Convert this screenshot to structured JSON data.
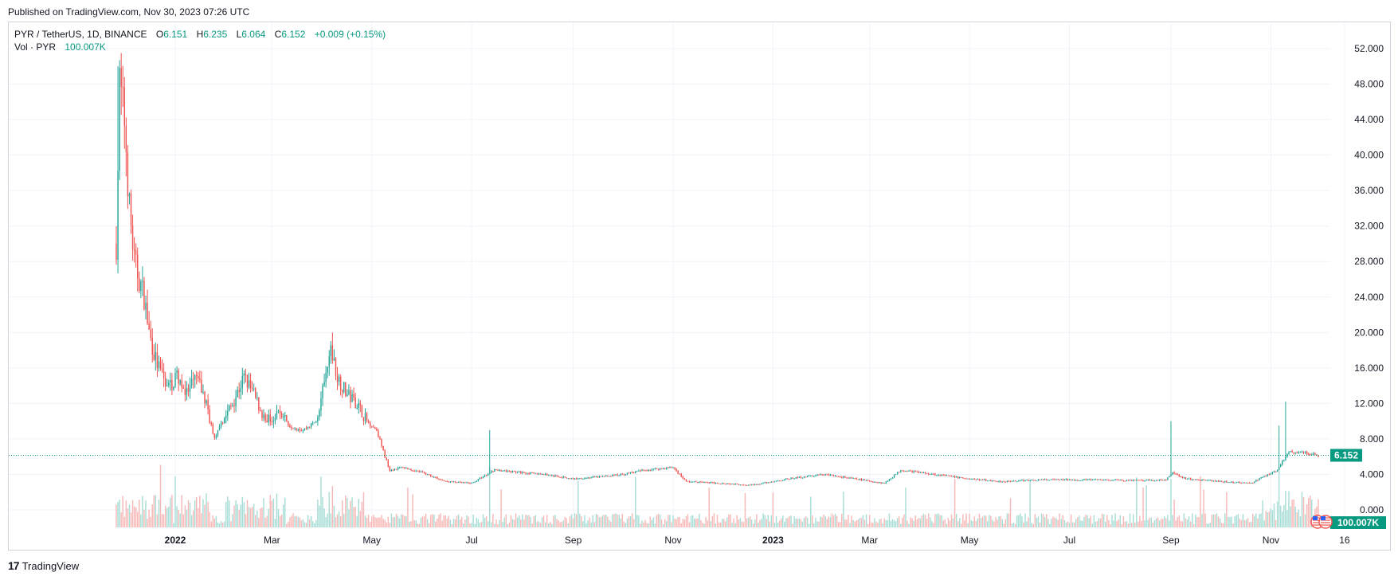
{
  "header": {
    "published": "Published on TradingView.com, Nov 30, 2023 07:26 UTC"
  },
  "legend": {
    "symbol": "PYR / TetherUS, 1D, BINANCE",
    "open_label": "O",
    "open": "6.151",
    "high_label": "H",
    "high": "6.235",
    "low_label": "L",
    "low": "6.064",
    "close_label": "C",
    "close": "6.152",
    "change": "+0.009 (+0.15%)",
    "vol_label": "Vol · PYR",
    "vol_value": "100.007K"
  },
  "footer": {
    "brand": "TradingView",
    "logo_text": "17"
  },
  "colors": {
    "up": "#26a69a",
    "down": "#ef5350",
    "up_vol": "#a8ddd6",
    "down_vol": "#f7b9b7",
    "accent": "#089981",
    "grid": "#f0f3fa",
    "axis_text": "#131722"
  },
  "chart_data": {
    "type": "candlestick",
    "title": "PYR / TetherUS, 1D, BINANCE",
    "ylim": [
      0,
      54
    ],
    "y_ticks": [
      "0.000",
      "4.000",
      "8.000",
      "12.000",
      "16.000",
      "20.000",
      "24.000",
      "28.000",
      "32.000",
      "36.000",
      "40.000",
      "44.000",
      "48.000",
      "52.000"
    ],
    "x_ticks": [
      "2022",
      "Mar",
      "May",
      "Jul",
      "Sep",
      "Nov",
      "2023",
      "Mar",
      "May",
      "Jul",
      "Sep",
      "Nov",
      "16"
    ],
    "last_price": "6.152",
    "last_volume": "100.007K",
    "price_path": [
      [
        "2021-11-26",
        30
      ],
      [
        "2021-11-28",
        48
      ],
      [
        "2021-12-01",
        44
      ],
      [
        "2021-12-04",
        34
      ],
      [
        "2021-12-07",
        28
      ],
      [
        "2021-12-10",
        26
      ],
      [
        "2021-12-13",
        24
      ],
      [
        "2021-12-16",
        20
      ],
      [
        "2021-12-20",
        17
      ],
      [
        "2021-12-24",
        15
      ],
      [
        "2021-12-28",
        14
      ],
      [
        "2022-01-03",
        15
      ],
      [
        "2022-01-08",
        13
      ],
      [
        "2022-01-14",
        15
      ],
      [
        "2022-01-20",
        12
      ],
      [
        "2022-01-25",
        8
      ],
      [
        "2022-01-30",
        10
      ],
      [
        "2022-02-05",
        12
      ],
      [
        "2022-02-12",
        15
      ],
      [
        "2022-02-18",
        13
      ],
      [
        "2022-02-25",
        10
      ],
      [
        "2022-03-05",
        11
      ],
      [
        "2022-03-12",
        9.5
      ],
      [
        "2022-03-20",
        9
      ],
      [
        "2022-03-28",
        10
      ],
      [
        "2022-04-03",
        15
      ],
      [
        "2022-04-06",
        18
      ],
      [
        "2022-04-10",
        15
      ],
      [
        "2022-04-16",
        13
      ],
      [
        "2022-04-22",
        12
      ],
      [
        "2022-04-28",
        10
      ],
      [
        "2022-05-04",
        9
      ],
      [
        "2022-05-09",
        6
      ],
      [
        "2022-05-12",
        4.5
      ],
      [
        "2022-05-20",
        4.8
      ],
      [
        "2022-06-01",
        4.2
      ],
      [
        "2022-06-15",
        3.2
      ],
      [
        "2022-07-01",
        3.0
      ],
      [
        "2022-07-15",
        4.5
      ],
      [
        "2022-08-01",
        4.2
      ],
      [
        "2022-08-15",
        4.0
      ],
      [
        "2022-09-01",
        3.5
      ],
      [
        "2022-09-15",
        3.7
      ],
      [
        "2022-10-01",
        4.0
      ],
      [
        "2022-10-15",
        4.5
      ],
      [
        "2022-11-01",
        4.8
      ],
      [
        "2022-11-09",
        3.2
      ],
      [
        "2022-12-01",
        3.0
      ],
      [
        "2022-12-20",
        2.8
      ],
      [
        "2023-01-10",
        3.5
      ],
      [
        "2023-02-01",
        4.0
      ],
      [
        "2023-02-20",
        3.5
      ],
      [
        "2023-03-10",
        3.0
      ],
      [
        "2023-03-20",
        4.5
      ],
      [
        "2023-04-10",
        4.0
      ],
      [
        "2023-05-01",
        3.5
      ],
      [
        "2023-05-20",
        3.2
      ],
      [
        "2023-06-15",
        3.4
      ],
      [
        "2023-07-15",
        3.4
      ],
      [
        "2023-08-15",
        3.3
      ],
      [
        "2023-08-29",
        3.4
      ],
      [
        "2023-09-02",
        4.2
      ],
      [
        "2023-09-10",
        3.5
      ],
      [
        "2023-10-01",
        3.2
      ],
      [
        "2023-10-20",
        3.0
      ],
      [
        "2023-10-28",
        3.8
      ],
      [
        "2023-11-05",
        4.5
      ],
      [
        "2023-11-08",
        5.5
      ],
      [
        "2023-11-12",
        6.5
      ],
      [
        "2023-11-20",
        6.5
      ],
      [
        "2023-11-30",
        6.15
      ]
    ],
    "spike_days": [
      [
        "2022-07-12",
        9
      ],
      [
        "2023-09-01",
        10
      ],
      [
        "2023-11-06",
        9.5
      ],
      [
        "2023-11-10",
        12.2
      ],
      [
        "2022-01-01",
        16
      ],
      [
        "2022-04-07",
        20
      ]
    ]
  }
}
